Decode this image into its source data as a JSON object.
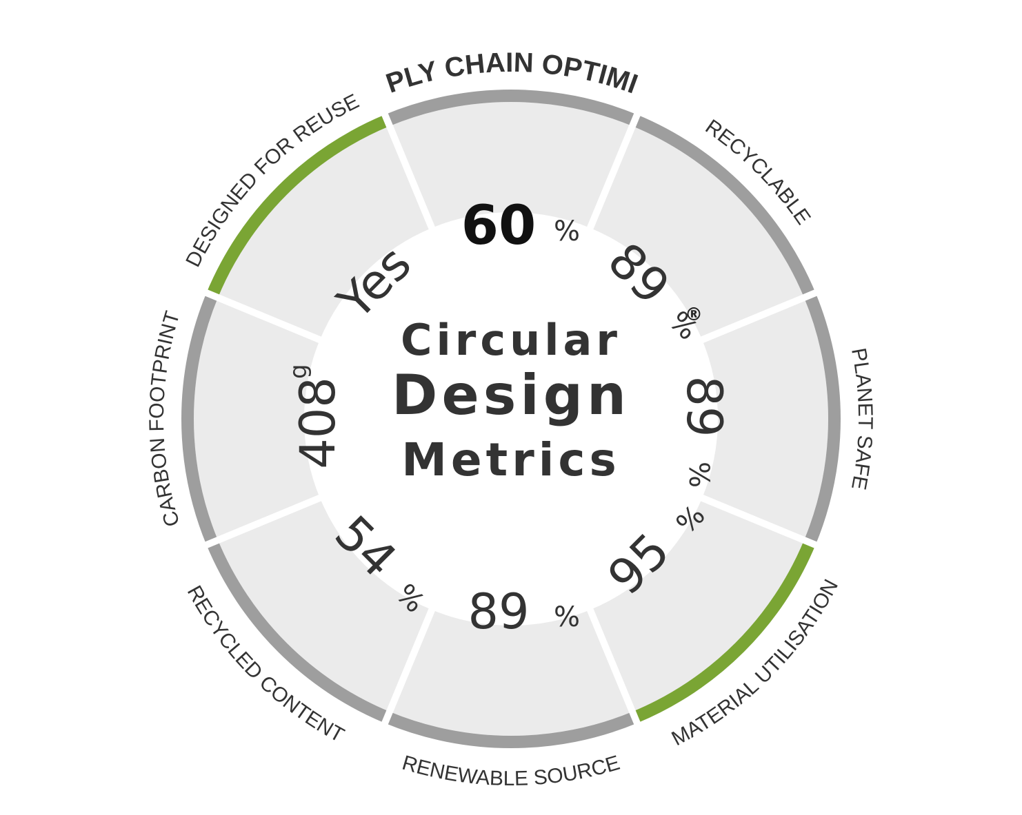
{
  "center": {
    "lines": [
      "Circular",
      "Design",
      "Metrics"
    ],
    "mark": "®"
  },
  "colors": {
    "ring_default": "#9e9e9e",
    "ring_highlight": "#7aa534",
    "sector": "#ebebeb",
    "text": "#333333"
  },
  "metrics": [
    {
      "label": "SUPPLY CHAIN OPTIMIZED",
      "value": "60",
      "unit": "%",
      "highlight": false,
      "emphasis": true
    },
    {
      "label": "RECYCLABLE",
      "value": "89",
      "unit": "%",
      "highlight": false,
      "emphasis": false
    },
    {
      "label": "PLANET SAFE",
      "value": "89",
      "unit": "%",
      "highlight": false,
      "emphasis": false
    },
    {
      "label": "MATERIAL UTILISATION",
      "value": "95",
      "unit": "%",
      "highlight": true,
      "emphasis": false
    },
    {
      "label": "RENEWABLE SOURCE",
      "value": "89",
      "unit": "%",
      "highlight": false,
      "emphasis": false
    },
    {
      "label": "RECYCLED CONTENT",
      "value": "54",
      "unit": "%",
      "highlight": false,
      "emphasis": false
    },
    {
      "label": "CARBON FOOTPRINT",
      "value": "408",
      "unit": "g",
      "highlight": false,
      "emphasis": false
    },
    {
      "label": "DESIGNED FOR REUSE",
      "value": "Yes",
      "unit": "",
      "highlight": true,
      "emphasis": false
    }
  ]
}
